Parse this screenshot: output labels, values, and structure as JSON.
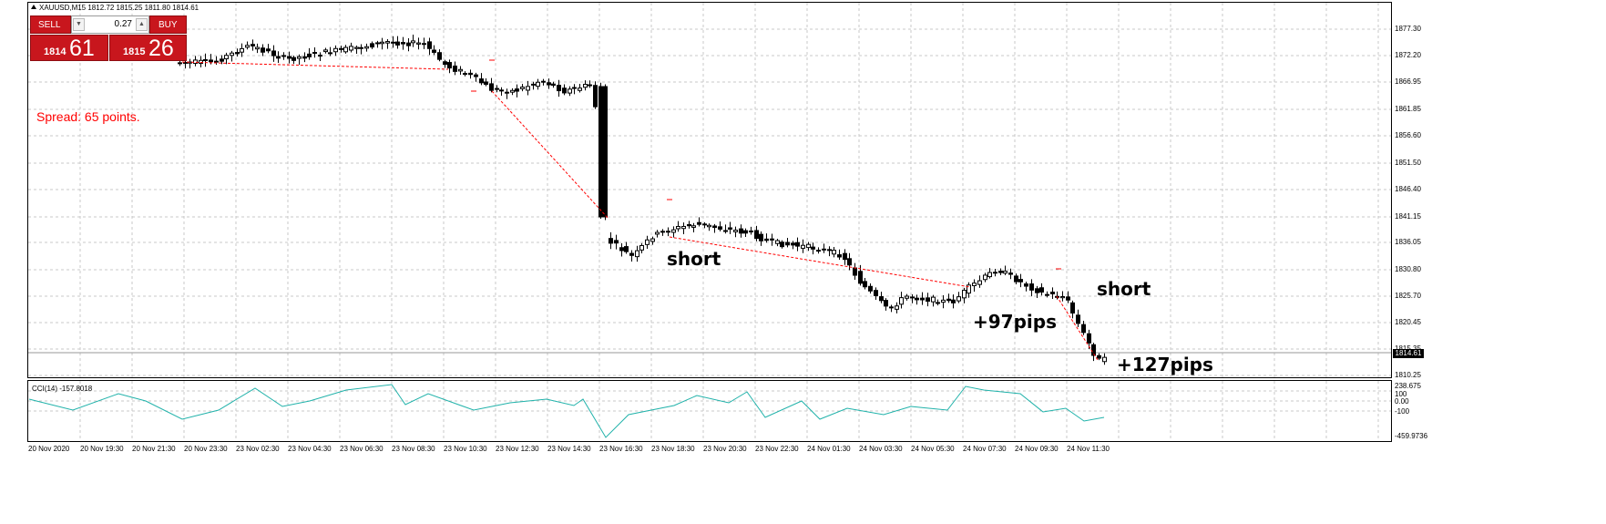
{
  "chart": {
    "symbol_line": "XAUUSD,M15  1812.72 1815.25 1811.80 1814.61",
    "spread_text": "Spread: 65 points.",
    "current_price": "1814.61",
    "annotations": [
      "short",
      "short",
      "+97pips",
      "+127pips"
    ],
    "price_axis": [
      "1877.30",
      "1872.20",
      "1866.95",
      "1861.85",
      "1856.60",
      "1851.50",
      "1846.40",
      "1841.15",
      "1836.05",
      "1830.80",
      "1825.70",
      "1820.45",
      "1815.35",
      "1810.25"
    ],
    "time_axis": [
      "20 Nov 2020",
      "20 Nov 19:30",
      "20 Nov 21:30",
      "20 Nov 23:30",
      "23 Nov 02:30",
      "23 Nov 04:30",
      "23 Nov 06:30",
      "23 Nov 08:30",
      "23 Nov 10:30",
      "23 Nov 12:30",
      "23 Nov 14:30",
      "23 Nov 16:30",
      "23 Nov 18:30",
      "23 Nov 20:30",
      "23 Nov 22:30",
      "24 Nov 01:30",
      "24 Nov 03:30",
      "24 Nov 05:30",
      "24 Nov 07:30",
      "24 Nov 09:30",
      "24 Nov 11:30"
    ],
    "colors": {
      "grid": "#c8c8c8",
      "candle": "#000000",
      "trade_line": "#ff0000",
      "cci": "#20b2aa",
      "panel_red": "#c8161d"
    }
  },
  "trade_panel": {
    "sell_label": "SELL",
    "buy_label": "BUY",
    "lot_value": "0.27",
    "sell_price_main": "1814",
    "sell_price_big": "61",
    "buy_price_main": "1815",
    "buy_price_big": "26"
  },
  "cci": {
    "label": "CCI(14) -157.8018",
    "axis": [
      "238.675",
      "100",
      "0.00",
      "-100",
      "-459.9736"
    ]
  }
}
